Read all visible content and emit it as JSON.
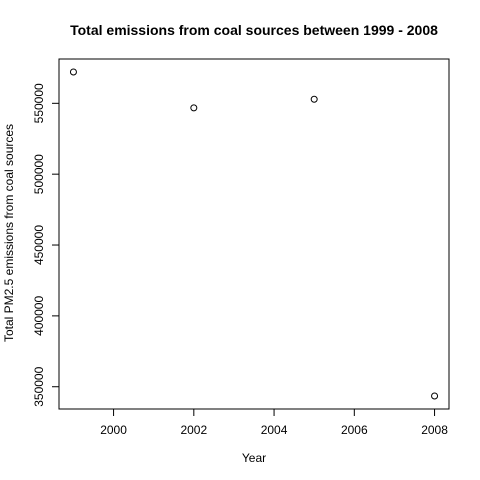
{
  "chart_data": {
    "type": "scatter",
    "title": "Total emissions from coal sources between 1999 - 2008",
    "xlabel": "Year",
    "ylabel": "Total PM2.5 emissions from coal sources",
    "x": [
      1999,
      2002,
      2005,
      2008
    ],
    "y": [
      572126,
      546789,
      552881,
      343432
    ],
    "xlim": [
      1999,
      2008
    ],
    "ylim": [
      343432,
      572126
    ],
    "xticks": [
      2000,
      2002,
      2004,
      2006,
      2008
    ],
    "yticks": [
      350000,
      400000,
      450000,
      500000,
      550000
    ],
    "xtick_labels": [
      "2000",
      "2002",
      "2004",
      "2006",
      "2008"
    ],
    "ytick_labels": [
      "350000",
      "400000",
      "450000",
      "500000",
      "550000"
    ],
    "marker": "open-circle",
    "grid": false,
    "legend": "none",
    "colors": {
      "marker": "#000000",
      "axis": "#000000",
      "background": "#ffffff"
    }
  }
}
